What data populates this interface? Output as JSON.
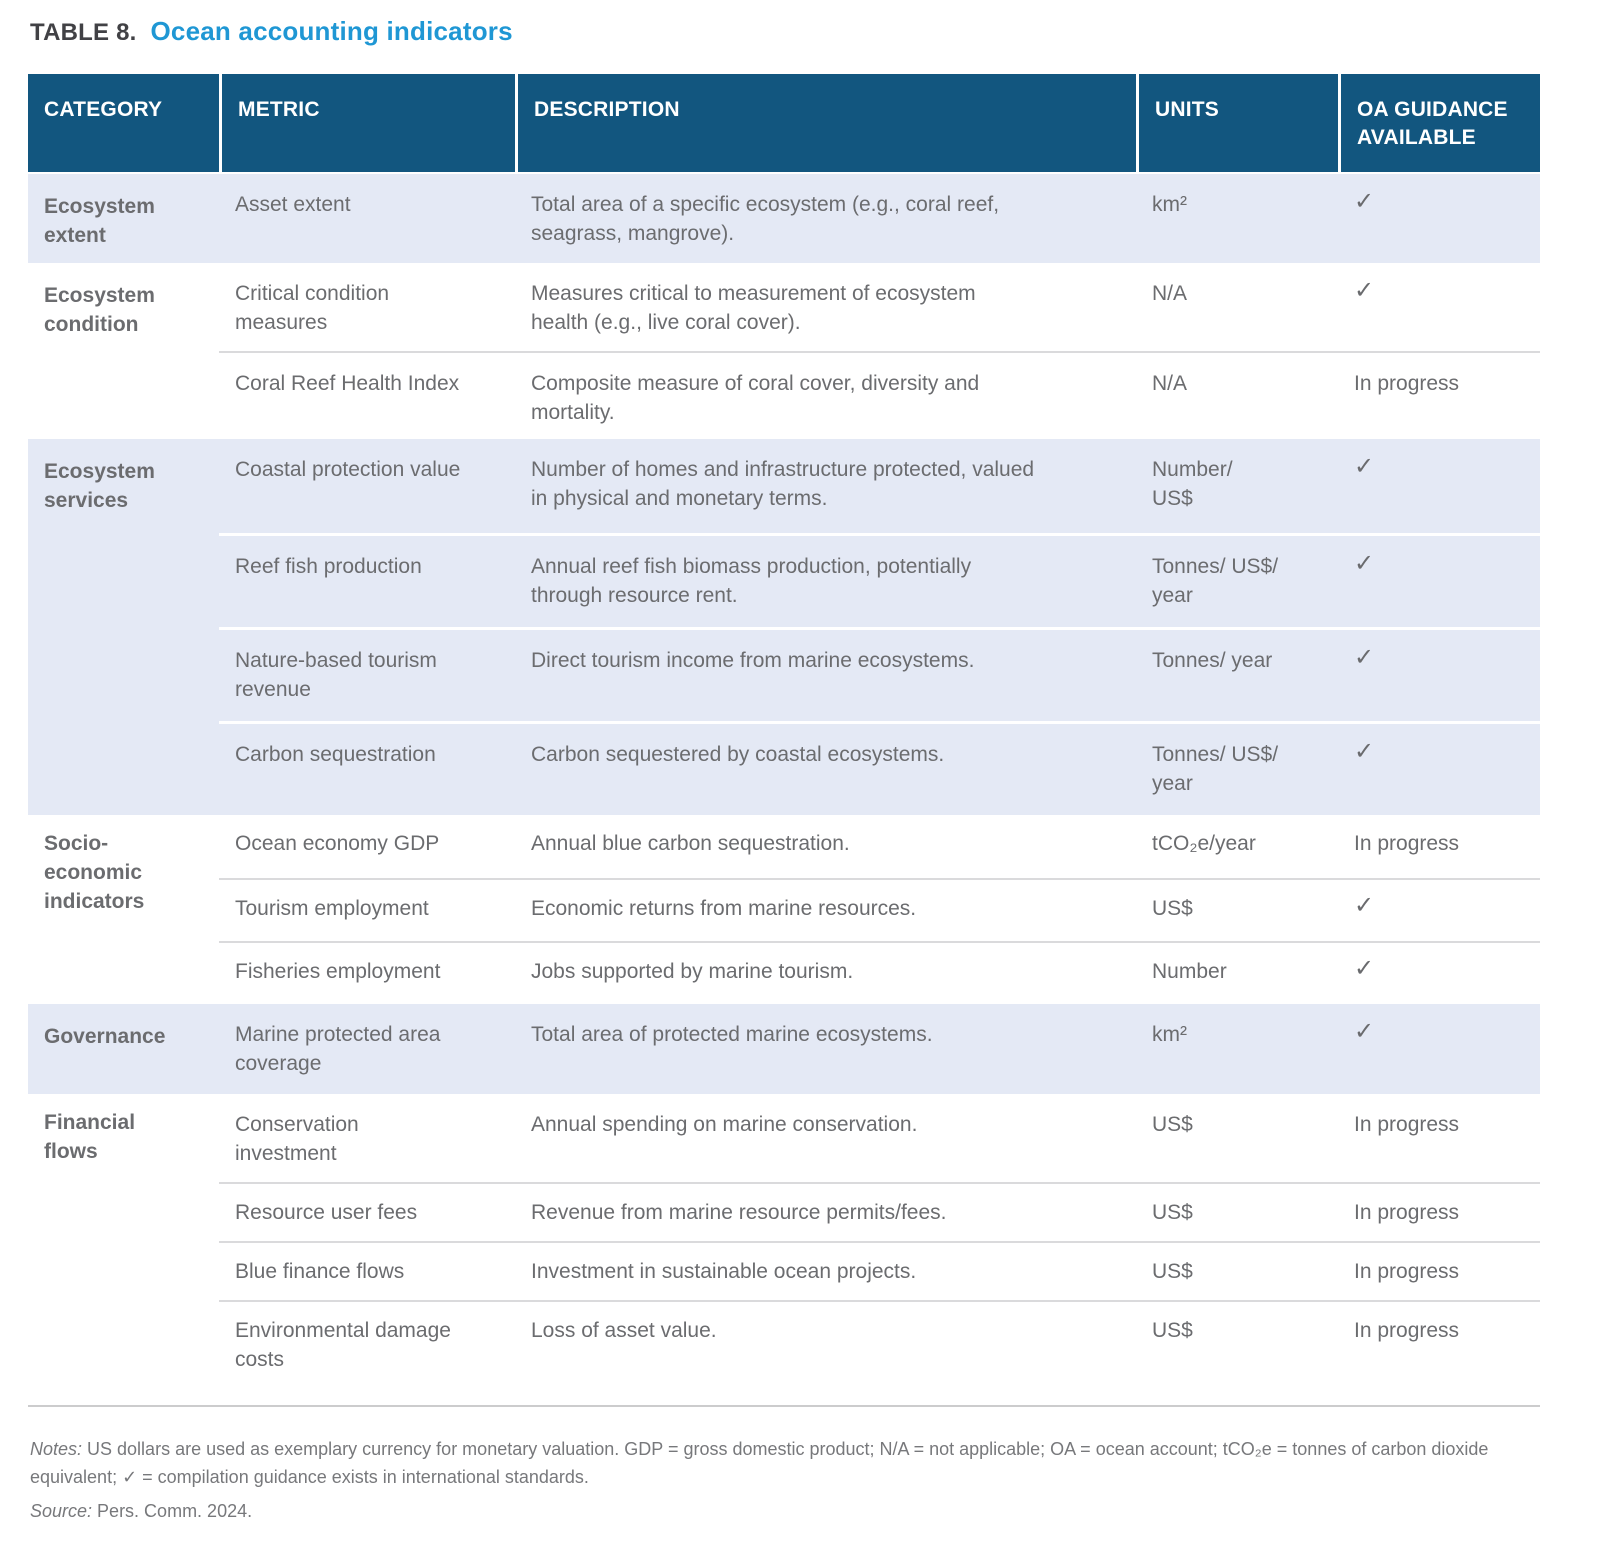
{
  "title": {
    "prefix": "TABLE 8.",
    "text": "Ocean accounting indicators"
  },
  "colors": {
    "header_bg": "#12567f",
    "row_shade": "#e4e9f5",
    "title_accent": "#1f97d4",
    "body_text": "#6b6c6f",
    "category_text": "#57585b",
    "check_mark": "#6a6b6e"
  },
  "table": {
    "columns": [
      "CATEGORY",
      "METRIC",
      "DESCRIPTION",
      "UNITS",
      "OA GUIDANCE AVAILABLE"
    ],
    "groups": [
      {
        "category": "Ecosystem extent",
        "shaded": true,
        "rows": [
          {
            "metric": "Asset extent",
            "description": "Total area of a specific ecosystem (e.g., coral reef, seagrass, mangrove).",
            "units": "km²",
            "guidance": "✓"
          }
        ]
      },
      {
        "category": "Ecosystem condition",
        "shaded": false,
        "rows": [
          {
            "metric": "Critical condition measures",
            "description": "Measures critical to measurement of ecosystem health (e.g., live coral cover).",
            "units": "N/A",
            "guidance": "✓"
          },
          {
            "metric": "Coral Reef Health Index",
            "description": "Composite measure of coral cover, diversity and mortality.",
            "units": "N/A",
            "guidance": "In progress"
          }
        ]
      },
      {
        "category": "Ecosystem services",
        "shaded": true,
        "rows": [
          {
            "metric": "Coastal protection value",
            "description": "Number of homes and infrastructure protected, valued in physical and monetary terms.",
            "units": "Number/\nUS$",
            "guidance": "✓"
          },
          {
            "metric": "Reef fish production",
            "description": "Annual reef fish biomass production, potentially through resource rent.",
            "units": "Tonnes/ US$/ year",
            "guidance": "✓"
          },
          {
            "metric": "Nature-based tourism revenue",
            "description": "Direct tourism income from marine ecosystems.",
            "units": "Tonnes/ year",
            "guidance": "✓"
          },
          {
            "metric": "Carbon sequestration",
            "description": "Carbon sequestered by coastal ecosystems.",
            "units": "Tonnes/ US$/ year",
            "guidance": "✓"
          }
        ]
      },
      {
        "category": "Socio-economic indicators",
        "shaded": false,
        "rows": [
          {
            "metric": "Ocean economy GDP",
            "description": "Annual blue carbon sequestration.",
            "units": "tCO₂e/year",
            "guidance": "In progress"
          },
          {
            "metric": "Tourism employment",
            "description": "Economic returns from marine resources.",
            "units": "US$",
            "guidance": "✓"
          },
          {
            "metric": "Fisheries employment",
            "description": "Jobs supported by marine tourism.",
            "units": "Number",
            "guidance": "✓"
          }
        ]
      },
      {
        "category": "Governance",
        "shaded": true,
        "rows": [
          {
            "metric": "Marine protected area coverage",
            "description": "Total area of protected marine ecosystems.",
            "units": "km²",
            "guidance": "✓"
          }
        ]
      },
      {
        "category": "Financial flows",
        "shaded": false,
        "rows": [
          {
            "metric": "Conservation investment",
            "description": "Annual spending on marine conservation.",
            "units": "US$",
            "guidance": "In progress"
          },
          {
            "metric": "Resource user fees",
            "description": "Revenue from marine resource permits/fees.",
            "units": "US$",
            "guidance": "In progress"
          },
          {
            "metric": "Blue finance flows",
            "description": "Investment in sustainable ocean projects.",
            "units": "US$",
            "guidance": "In progress"
          },
          {
            "metric": "Environmental damage costs",
            "description": "Loss of asset value.",
            "units": "US$",
            "guidance": "In progress"
          }
        ]
      }
    ]
  },
  "notes": {
    "notes_label": "Notes:",
    "notes_text": " US dollars are used as exemplary currency for monetary valuation. GDP = gross domestic product; N/A = not applicable; OA = ocean account; tCO₂e = tonnes of carbon dioxide equivalent; ✓ = compilation guidance exists in international standards.",
    "source_label": "Source:",
    "source_text": " Pers. Comm. 2024."
  }
}
